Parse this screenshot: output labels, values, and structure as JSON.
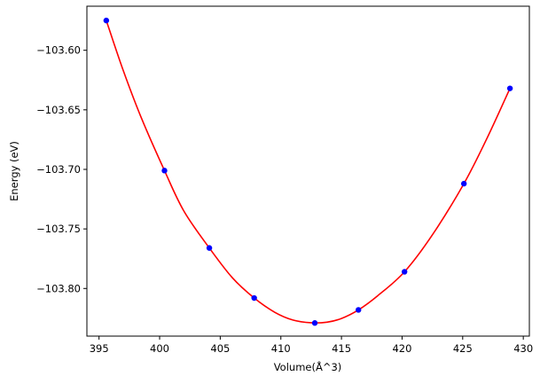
{
  "chart_data": {
    "type": "scatter",
    "title": "",
    "xlabel": "Volume(Å^3)",
    "ylabel": "Energy (eV)",
    "xlim": [
      394,
      430.5
    ],
    "ylim": [
      -103.84,
      -103.563
    ],
    "xticks": [
      395,
      400,
      405,
      410,
      415,
      420,
      425,
      430
    ],
    "yticks": [
      -103.8,
      -103.75,
      -103.7,
      -103.65,
      -103.6
    ],
    "ytick_labels": [
      "−103.80",
      "−103.75",
      "−103.70",
      "−103.65",
      "−103.60"
    ],
    "grid": false,
    "legend": "none",
    "series": [
      {
        "kind": "points",
        "color": "#0000ff",
        "x": [
          395.6,
          400.4,
          404.1,
          407.8,
          412.8,
          416.4,
          420.2,
          425.1,
          428.9
        ],
        "y": [
          -103.575,
          -103.701,
          -103.766,
          -103.808,
          -103.829,
          -103.818,
          -103.786,
          -103.712,
          -103.632
        ]
      },
      {
        "kind": "fit-curve",
        "color": "#ff0000",
        "x": [
          395.6,
          397.0,
          398.5,
          400.4,
          402.0,
          404.1,
          406.0,
          407.8,
          409.5,
          411.0,
          412.5,
          413.8,
          415.0,
          416.4,
          418.0,
          420.2,
          422.5,
          425.1,
          427.0,
          428.9
        ],
        "y": [
          -103.575,
          -103.617,
          -103.657,
          -103.701,
          -103.735,
          -103.766,
          -103.791,
          -103.808,
          -103.82,
          -103.8265,
          -103.8288,
          -103.8283,
          -103.8252,
          -103.818,
          -103.806,
          -103.786,
          -103.755,
          -103.712,
          -103.674,
          -103.632
        ]
      }
    ]
  }
}
